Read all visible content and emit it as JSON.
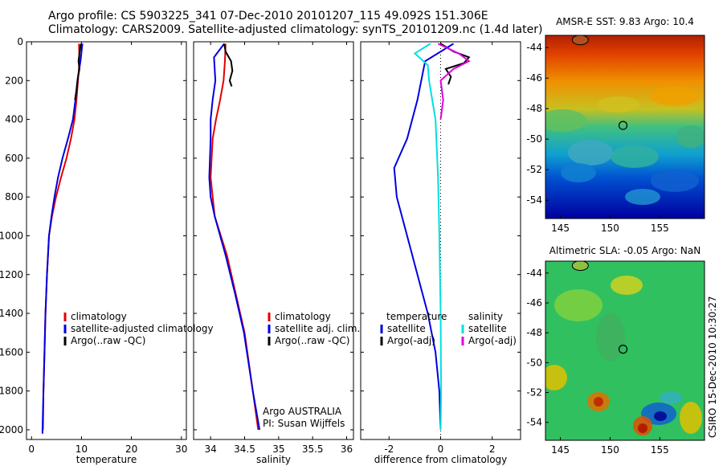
{
  "header": {
    "line1": "Argo profile: CS 5903225_341 07-Dec-2010 20101207_115 49.092S 151.306E",
    "line2": "Climatology: CARS2009. Satellite-adjusted climatology: synTS_20101209.nc (1.4d later)"
  },
  "chart_data": [
    {
      "type": "line",
      "xlabel": "temperature",
      "xlim": [
        -1,
        31
      ],
      "ylim": [
        2050,
        0
      ],
      "xticks": [
        "0",
        "10",
        "20",
        "30"
      ],
      "yticks": [
        "0",
        "200",
        "400",
        "600",
        "800",
        "1000",
        "1200",
        "1400",
        "1600",
        "1800",
        "2000"
      ],
      "legend": [
        "climatology",
        "satellite-adjusted climatology",
        "Argo(..raw -QC)"
      ],
      "series": [
        {
          "name": "climatology",
          "color": "#e00000",
          "x": [
            9.5,
            9.6,
            9.3,
            9.0,
            8.6,
            7.9,
            7.0,
            5.9,
            4.9,
            4.1,
            3.5,
            3.1,
            2.8,
            2.6,
            2.4,
            2.3
          ],
          "y": [
            10,
            100,
            200,
            300,
            400,
            500,
            600,
            700,
            800,
            900,
            1000,
            1200,
            1400,
            1600,
            1800,
            2000
          ]
        },
        {
          "name": "satellite-adjusted climatology",
          "color": "#0000e0",
          "x": [
            10.2,
            9.8,
            9.2,
            8.8,
            8.3,
            7.3,
            6.2,
            5.3,
            4.6,
            4.0,
            3.5,
            3.1,
            2.8,
            2.6,
            2.4,
            2.2,
            2.2
          ],
          "y": [
            10,
            100,
            200,
            300,
            400,
            500,
            600,
            700,
            800,
            900,
            1000,
            1200,
            1400,
            1600,
            1800,
            2000,
            2020
          ]
        },
        {
          "name": "Argo(..raw -QC)",
          "color": "#000000",
          "x": [
            9.9,
            9.6,
            9.4,
            9.6,
            9.3,
            9.0,
            8.7
          ],
          "y": [
            10,
            60,
            100,
            140,
            180,
            250,
            300
          ]
        }
      ]
    },
    {
      "type": "line",
      "xlabel": "salinity",
      "xlim": [
        33.75,
        36.1
      ],
      "ylim": [
        2050,
        0
      ],
      "xticks": [
        "34",
        "34.5",
        "35",
        "35.5",
        "36"
      ],
      "legend": [
        "climatology",
        "satellite adj. clim.",
        "Argo(..raw -QC)"
      ],
      "series": [
        {
          "name": "climatology",
          "color": "#e00000",
          "x": [
            34.22,
            34.21,
            34.19,
            34.14,
            34.08,
            34.03,
            34.0,
            34.06,
            34.24,
            34.37,
            34.5,
            34.62,
            34.7
          ],
          "y": [
            10,
            100,
            200,
            300,
            400,
            500,
            700,
            900,
            1100,
            1300,
            1500,
            1800,
            2000
          ]
        },
        {
          "name": "satellite adj. clim.",
          "color": "#0000e0",
          "x": [
            34.2,
            34.05,
            34.07,
            34.03,
            34.0,
            34.0,
            33.98,
            34.0,
            34.06,
            34.22,
            34.36,
            34.49,
            34.62,
            34.72
          ],
          "y": [
            10,
            80,
            200,
            300,
            400,
            500,
            700,
            800,
            900,
            1100,
            1300,
            1500,
            1800,
            2000
          ]
        },
        {
          "name": "Argo(..raw -QC)",
          "color": "#000000",
          "x": [
            34.2,
            34.22,
            34.3,
            34.32,
            34.28,
            34.31
          ],
          "y": [
            10,
            50,
            100,
            150,
            200,
            230
          ]
        }
      ],
      "annotations": [
        "Argo AUSTRALIA",
        "PI: Susan Wijffels"
      ]
    },
    {
      "type": "line",
      "xlabel": "difference from climatology",
      "xlim": [
        -3.1,
        3.1
      ],
      "ylim": [
        2050,
        0
      ],
      "xticks": [
        "-2",
        "0",
        "2"
      ],
      "legend_temperature_title": "temperature",
      "legend_salinity_title": "salinity",
      "legend": [
        "satellite",
        "Argo(-adj)",
        "satellite",
        "Argo(-adj)"
      ],
      "series": [
        {
          "name": "satellite",
          "color": "#0000e0",
          "x": [
            0.5,
            -0.6,
            -0.9,
            -1.3,
            -1.8,
            -1.7,
            -1.3,
            -0.9,
            -0.5,
            -0.2,
            -0.05,
            0.0
          ],
          "y": [
            10,
            100,
            300,
            500,
            650,
            800,
            1000,
            1200,
            1400,
            1600,
            1800,
            2000
          ]
        },
        {
          "name": "Argo(-adj)",
          "color": "#000000",
          "x": [
            0.0,
            0.5,
            1.1,
            0.9,
            0.2,
            0.4,
            0.3
          ],
          "y": [
            10,
            50,
            80,
            110,
            140,
            180,
            220
          ]
        },
        {
          "name": "satellite",
          "color": "#00e0e0",
          "x": [
            -0.4,
            -1.0,
            -0.5,
            -0.45,
            -0.2,
            -0.1,
            -0.05,
            0.0,
            0.02,
            0.0
          ],
          "y": [
            10,
            60,
            120,
            200,
            400,
            700,
            1000,
            1400,
            1800,
            2000
          ]
        },
        {
          "name": "Argo(-adj)",
          "color": "#e000e0",
          "x": [
            -0.1,
            0.7,
            1.1,
            0.5,
            0.0,
            0.1,
            0.0
          ],
          "y": [
            10,
            60,
            100,
            140,
            200,
            300,
            400
          ]
        }
      ]
    },
    {
      "type": "heatmap",
      "title": "AMSR-E SST: 9.83 Argo: 10.4",
      "xlim": [
        143.5,
        159.5
      ],
      "ylim": [
        -55.2,
        -43.2
      ],
      "xticks": [
        "145",
        "150",
        "155"
      ],
      "yticks": [
        "-44",
        "-46",
        "-48",
        "-50",
        "-52",
        "-54"
      ],
      "marker": {
        "lon": 151.3,
        "lat": -49.1
      }
    },
    {
      "type": "heatmap",
      "title": "Altimetric SLA: -0.05 Argo: NaN",
      "xlim": [
        143.5,
        159.5
      ],
      "ylim": [
        -55.2,
        -43.2
      ],
      "xticks": [
        "145",
        "150",
        "155"
      ],
      "yticks": [
        "-44",
        "-46",
        "-48",
        "-50",
        "-52",
        "-54"
      ],
      "marker": {
        "lon": 151.3,
        "lat": -49.1
      }
    }
  ],
  "footer": {
    "credit": "CSIRO 15-Dec-2010 10:30:27"
  }
}
